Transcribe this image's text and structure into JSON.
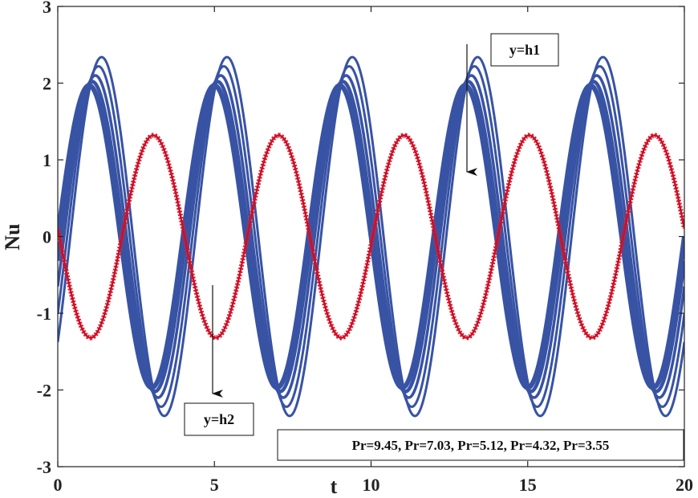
{
  "chart_data": {
    "type": "line",
    "title": "",
    "xlabel": "t",
    "ylabel": "Nu",
    "xlim": [
      0,
      20
    ],
    "ylim": [
      -3,
      3
    ],
    "x_ticks": [
      0,
      5,
      10,
      15,
      20
    ],
    "y_ticks": [
      -3,
      -2,
      -1,
      0,
      1,
      2,
      3
    ],
    "grid": false,
    "colors": {
      "h1": "#3853a4",
      "h2": "#e41b23",
      "h2_marker": "#c8102e",
      "frame": "#222222"
    },
    "legend_text": "Pr=9.45, Pr=7.03, Pr=5.12, Pr=4.32, Pr=3.55",
    "legend_placement": "bottom-right",
    "annotations": [
      {
        "text": "y=h1",
        "arrow": "down"
      },
      {
        "text": "y=h2",
        "arrow": "down"
      }
    ],
    "period": 4,
    "series": [
      {
        "group": "y=h1",
        "line_width": 6,
        "amplitude": 1.97,
        "peak_t": 1.0
      },
      {
        "group": "y=h1",
        "line_width": 4.5,
        "amplitude": 2.02,
        "peak_t": 1.1
      },
      {
        "group": "y=h1",
        "line_width": 3.5,
        "amplitude": 2.1,
        "peak_t": 1.2
      },
      {
        "group": "y=h1",
        "line_width": 3,
        "amplitude": 2.22,
        "peak_t": 1.3
      },
      {
        "group": "y=h1",
        "line_width": 3,
        "amplitude": 2.34,
        "peak_t": 1.4
      },
      {
        "group": "y=h2",
        "line_width": 3,
        "amplitude": 1.32,
        "peak_t": 3.05
      }
    ]
  }
}
